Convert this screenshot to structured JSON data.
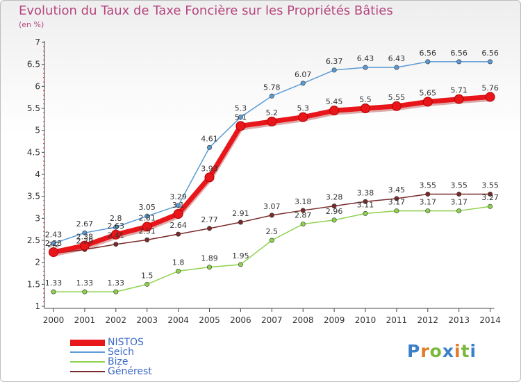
{
  "title": "Evolution du Taux de Taxe Foncière sur les Propriétés Bâties",
  "unit_label": "(en %)",
  "colors": {
    "title": "#b5467f",
    "legend_text": "#3d6bc7",
    "axis": "#444444"
  },
  "logo": {
    "letters": [
      "P",
      "r",
      "o",
      "x",
      "i",
      "t",
      "i"
    ],
    "colors": [
      "#3b80c8",
      "#e07b28",
      "#7ab93c",
      "#3b80c8",
      "#e07b28",
      "#7ab93c",
      "#3b80c8"
    ]
  },
  "chart_data": {
    "type": "line",
    "title": "Evolution du Taux de Taxe Foncière sur les Propriétés Bâties",
    "ylabel": "(en %)",
    "xlabel": "",
    "categories": [
      "2000",
      "2001",
      "2002",
      "2003",
      "2004",
      "2005",
      "2006",
      "2007",
      "2008",
      "2009",
      "2010",
      "2011",
      "2012",
      "2013",
      "2014"
    ],
    "ylim": [
      1,
      7
    ],
    "yticks": [
      1,
      1.5,
      2,
      2.5,
      3,
      3.5,
      4,
      4.5,
      5,
      5.5,
      6,
      6.5,
      7
    ],
    "ytick_labels": [
      "1",
      "1.5",
      "2",
      "2.5",
      "3",
      "3.5",
      "4",
      "4.5",
      "5",
      "5.5",
      "6",
      "6.5",
      "7"
    ],
    "grid": false,
    "legend_position": "bottom-left",
    "series": [
      {
        "name": "Seich",
        "color": "#5b9bd5",
        "values": [
          2.43,
          2.67,
          2.8,
          3.05,
          3.29,
          4.61,
          5.3,
          5.78,
          6.07,
          6.37,
          6.43,
          6.43,
          6.56,
          6.56,
          6.56
        ],
        "labels": [
          "2.43",
          "2.67",
          "2.8",
          "3.05",
          "3.29",
          "4.61",
          "5.3",
          "5.78",
          "6.07",
          "6.37",
          "6.43",
          "6.43",
          "6.56",
          "6.56",
          "6.56"
        ]
      },
      {
        "name": "Bize",
        "color": "#8fd14f",
        "values": [
          1.33,
          1.33,
          1.33,
          1.5,
          1.8,
          1.89,
          1.95,
          2.5,
          2.87,
          2.96,
          3.11,
          3.17,
          3.17,
          3.17,
          3.27
        ],
        "labels": [
          "1.33",
          "1.33",
          "1.33",
          "1.5",
          "1.8",
          "1.89",
          "1.95",
          "2.5",
          "2.87",
          "2.96",
          "3.11",
          "3.17",
          "3.17",
          "3.17",
          "3.27"
        ]
      },
      {
        "name": "Générest",
        "color": "#7a2a2a",
        "values": [
          2.2,
          2.29,
          2.41,
          2.51,
          2.64,
          2.77,
          2.91,
          3.07,
          3.18,
          3.28,
          3.38,
          3.45,
          3.55,
          3.55,
          3.55
        ],
        "labels": [
          "2.2",
          "2.29",
          "2.41",
          "2.51",
          "2.64",
          "2.77",
          "2.91",
          "3.07",
          "3.18",
          "3.28",
          "3.38",
          "3.45",
          "3.55",
          "3.55",
          "3.55"
        ]
      },
      {
        "name": "NISTOS",
        "color": "#e8161b",
        "values": [
          2.23,
          2.38,
          2.63,
          2.81,
          3.1,
          3.93,
          5.1,
          5.2,
          5.3,
          5.45,
          5.5,
          5.55,
          5.65,
          5.71,
          5.76
        ],
        "labels": [
          "2.23",
          "2.38",
          "2.63",
          "2.81",
          "3.1",
          "3.93",
          "5.1",
          "5.2",
          "5.3",
          "5.45",
          "5.5",
          "5.55",
          "5.65",
          "5.71",
          "5.76"
        ]
      }
    ],
    "legend": [
      "NISTOS",
      "Seich",
      "Bize",
      "Générest"
    ]
  }
}
